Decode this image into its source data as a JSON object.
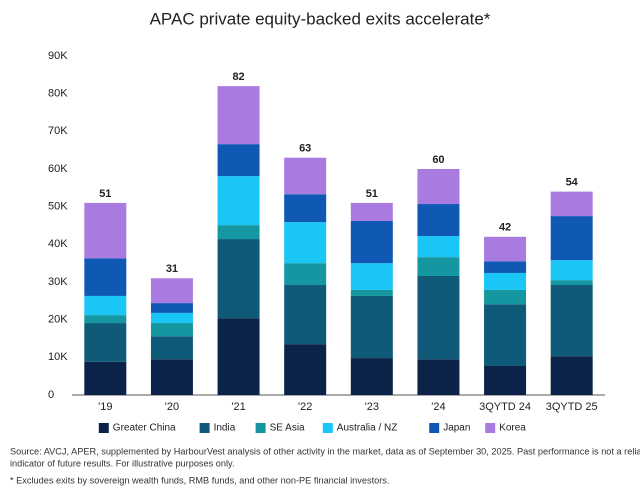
{
  "chart_data": {
    "type": "stacked_bar",
    "title": "APAC private equity-backed exits accelerate*",
    "categories": [
      "'19",
      "'20",
      "'21",
      "'22",
      "'23",
      "'24",
      "3QYTD 24",
      "3QYTD 25"
    ],
    "series": [
      {
        "name": "Greater China",
        "color": "#0b2348",
        "values": [
          8.8,
          9.5,
          20.4,
          13.5,
          9.8,
          9.5,
          7.7,
          10.3
        ]
      },
      {
        "name": "India",
        "color": "#0e5a78",
        "values": [
          10.3,
          6.1,
          21.0,
          15.7,
          16.5,
          22.1,
          16.4,
          18.9
        ]
      },
      {
        "name": "SE Asia",
        "color": "#1497a0",
        "values": [
          2.1,
          3.5,
          3.7,
          5.8,
          1.6,
          5.0,
          3.8,
          1.3
        ]
      },
      {
        "name": "Australia / NZ",
        "color": "#19c6f5",
        "values": [
          5.1,
          2.7,
          13.0,
          10.9,
          7.1,
          5.6,
          4.5,
          5.3
        ]
      },
      {
        "name": "Japan",
        "color": "#0f59b5",
        "values": [
          10.0,
          2.6,
          8.5,
          7.4,
          11.2,
          8.5,
          3.1,
          11.7
        ]
      },
      {
        "name": "Korea",
        "color": "#a97be0",
        "values": [
          14.7,
          6.6,
          15.4,
          9.7,
          4.8,
          9.3,
          6.5,
          6.5
        ]
      }
    ],
    "totals": [
      51,
      31,
      82,
      63,
      51,
      60,
      42,
      54
    ],
    "ylim": [
      0,
      90
    ],
    "yticks": [
      0,
      {
        "value": 10,
        "label": "10K"
      },
      {
        "value": 20,
        "label": "20K"
      },
      {
        "value": 30,
        "label": "30K"
      },
      {
        "value": 40,
        "label": "40K"
      },
      {
        "value": 50,
        "label": "50K"
      },
      {
        "value": 60,
        "label": "60K"
      },
      {
        "value": 70,
        "label": "70K"
      },
      {
        "value": 80,
        "label": "80K"
      },
      {
        "value": 90,
        "label": "90K"
      }
    ],
    "grid": false,
    "legend": "bottom",
    "notes": [
      "Source: AVCJ, APER, supplemented by HarbourVest analysis of other activity in the market, data as of September 30, 2025. Past performance is not a reliable",
      "indicator of future results. For illustrative purposes only.",
      "* Excludes exits by sovereign wealth funds, RMB funds, and other non-PE financial investors."
    ]
  }
}
